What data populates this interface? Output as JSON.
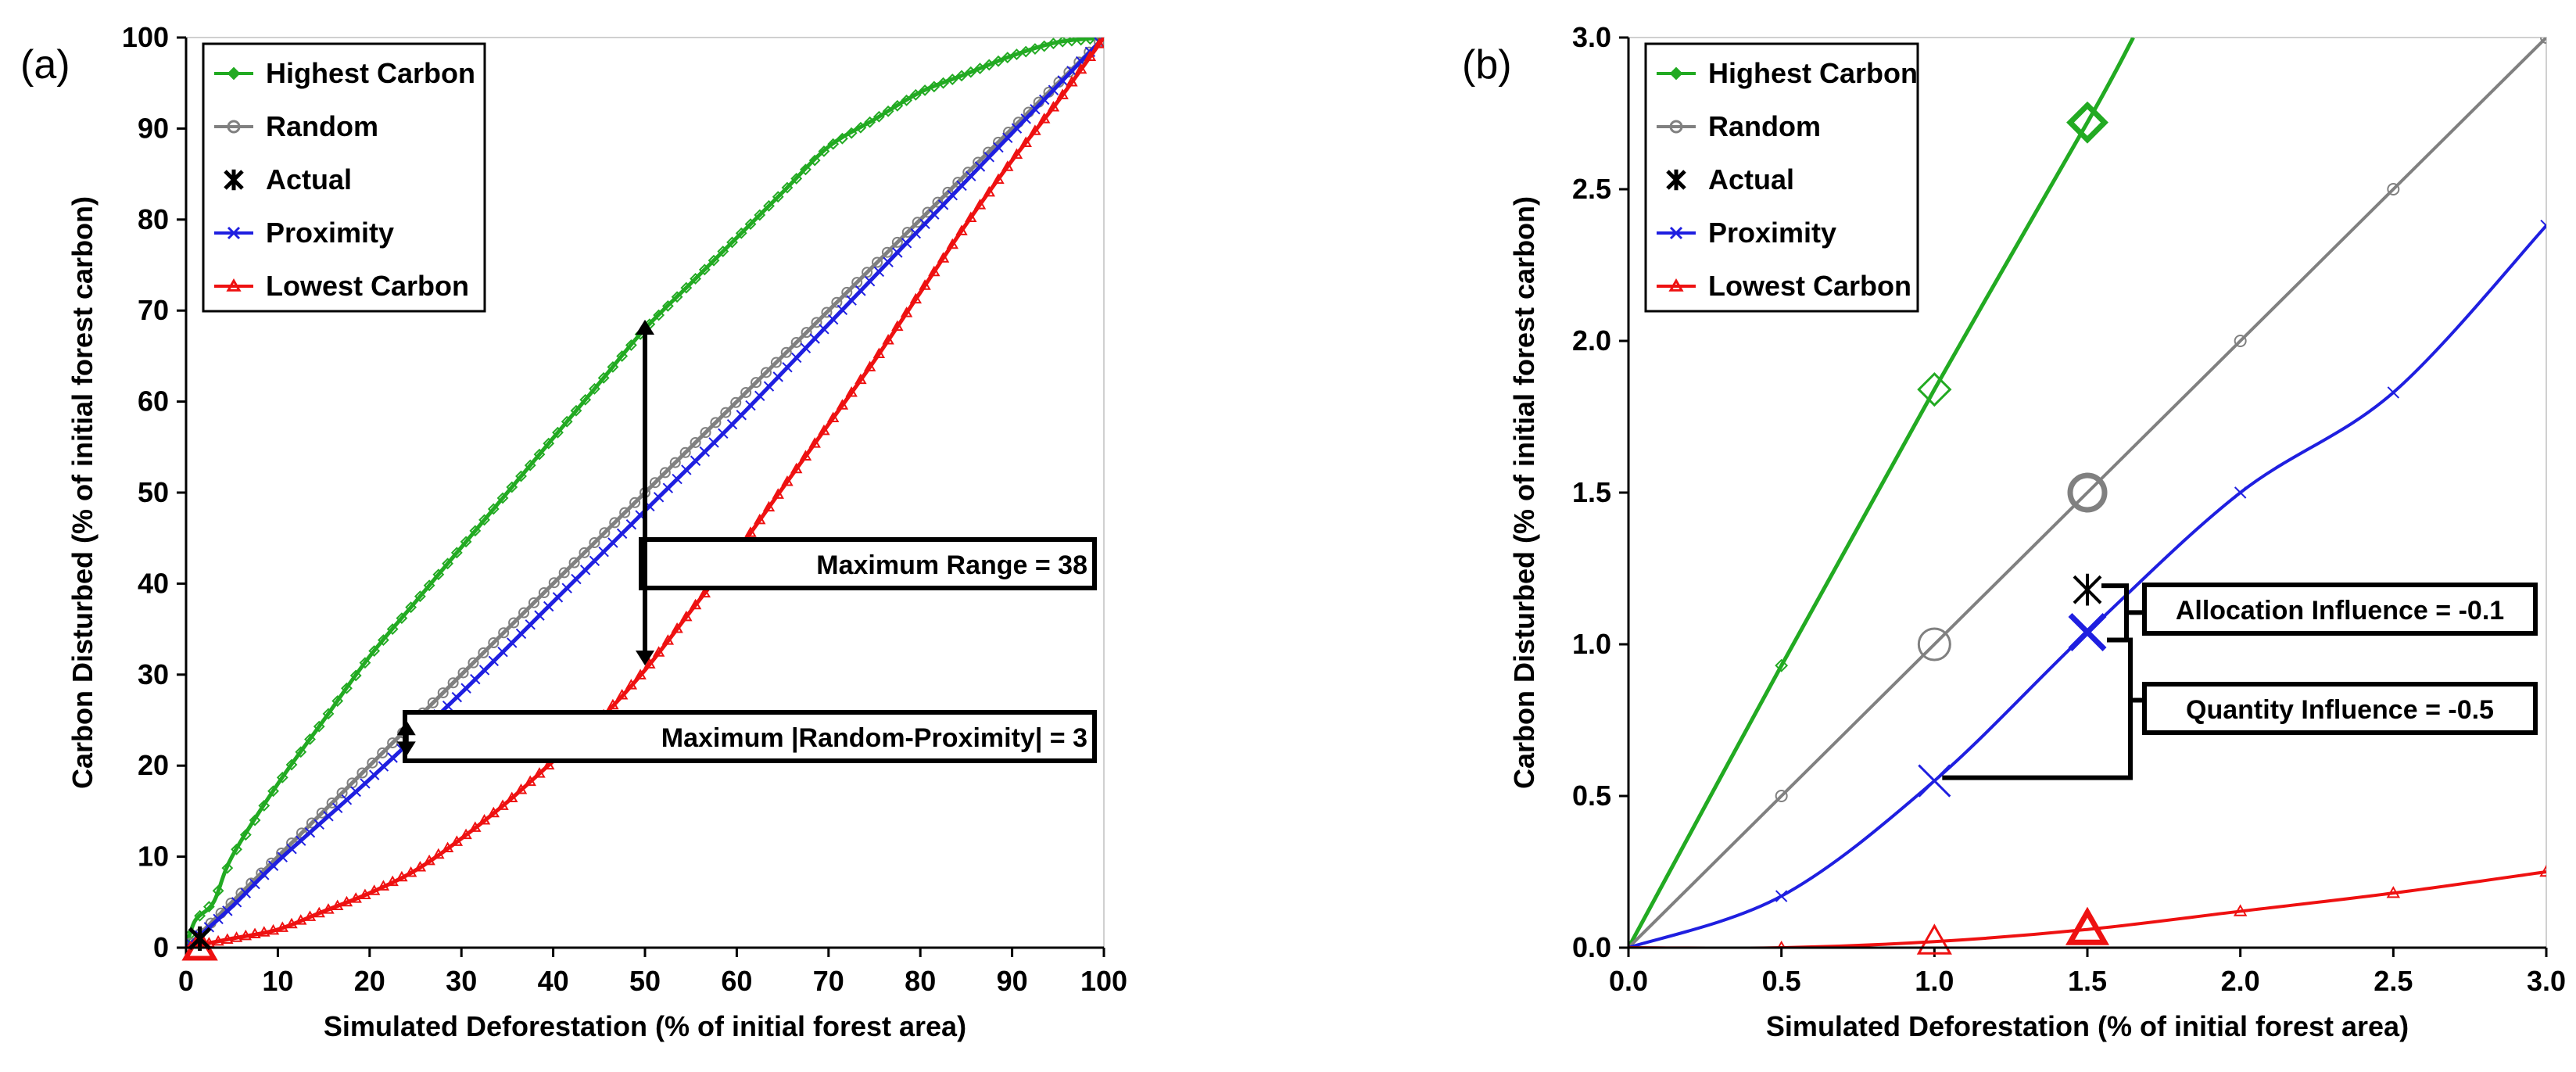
{
  "colors": {
    "highest": "#22aa22",
    "random": "#808080",
    "actual": "#000000",
    "proximity": "#1f1fe0",
    "lowest": "#ee1111"
  },
  "chart_data": [
    {
      "panel_label": "(a)",
      "type": "line",
      "xlabel": "Simulated Deforestation (% of initial forest area)",
      "ylabel": "Carbon Disturbed (% of initial forest carbon)",
      "xlim": [
        0,
        100
      ],
      "ylim": [
        0,
        100
      ],
      "xticks": [
        "0",
        "10",
        "20",
        "30",
        "40",
        "50",
        "60",
        "70",
        "80",
        "90",
        "100"
      ],
      "yticks": [
        "0",
        "10",
        "20",
        "30",
        "40",
        "50",
        "60",
        "70",
        "80",
        "90",
        "100"
      ],
      "legend": [
        "Highest Carbon",
        "Random",
        "Actual",
        "Proximity",
        "Lowest Carbon"
      ],
      "series": [
        {
          "name": "Highest Carbon",
          "key": "highest",
          "x": [
            0,
            1,
            3,
            5,
            10,
            15,
            20,
            25,
            30,
            35,
            40,
            45,
            50,
            55,
            60,
            65,
            70,
            75,
            80,
            85,
            90,
            95,
            100
          ],
          "values": [
            0,
            3,
            5,
            10,
            18,
            25,
            32,
            38,
            44,
            50,
            56,
            62,
            68,
            73,
            78,
            83,
            88,
            91,
            94,
            96,
            98,
            99.5,
            100
          ]
        },
        {
          "name": "Random",
          "key": "random",
          "x": [
            0,
            10,
            20,
            30,
            40,
            50,
            60,
            70,
            80,
            90,
            100
          ],
          "values": [
            0,
            10,
            20,
            30,
            40,
            50,
            60,
            70,
            80,
            90,
            100
          ]
        },
        {
          "name": "Proximity",
          "key": "proximity",
          "x": [
            0,
            5,
            10,
            20,
            30,
            40,
            50,
            60,
            70,
            80,
            90,
            100
          ],
          "values": [
            0,
            4.5,
            9.5,
            18.5,
            28,
            38,
            48,
            58,
            68.5,
            79,
            89.5,
            100
          ]
        },
        {
          "name": "Lowest Carbon",
          "key": "lowest",
          "x": [
            0,
            5,
            10,
            15,
            20,
            25,
            30,
            35,
            40,
            45,
            50,
            55,
            60,
            65,
            70,
            75,
            80,
            85,
            90,
            95,
            100
          ],
          "values": [
            0,
            1,
            2,
            4,
            6,
            8.5,
            12,
            16,
            20.5,
            25,
            30.5,
            37,
            43.5,
            50.5,
            57.5,
            64.5,
            72,
            79.5,
            86.5,
            93,
            100
          ]
        }
      ],
      "actual": {
        "name": "Actual",
        "x": 1.5,
        "y": 1
      },
      "big_markers": [
        {
          "series": "lowest",
          "x": 1.5,
          "y": 0
        }
      ],
      "annotations": {
        "range": {
          "label": "Maximum  Range = 38",
          "x": 50,
          "y_low": 31,
          "y_high": 69
        },
        "rp": {
          "label": "Maximum  |Random-Proximity|  = 3",
          "x": 24,
          "y_low": 21,
          "y_high": 25
        }
      }
    },
    {
      "panel_label": "(b)",
      "type": "line",
      "xlabel": "Simulated Deforestation (% of initial forest area)",
      "ylabel": "Carbon Disturbed (% of initial forest carbon)",
      "xlim": [
        0,
        3
      ],
      "ylim": [
        0,
        3
      ],
      "xticks": [
        "0.0",
        "0.5",
        "1.0",
        "1.5",
        "2.0",
        "2.5",
        "3.0"
      ],
      "yticks": [
        "0.0",
        "0.5",
        "1.0",
        "1.5",
        "2.0",
        "2.5",
        "3.0"
      ],
      "legend": [
        "Highest Carbon",
        "Random",
        "Actual",
        "Proximity",
        "Lowest Carbon"
      ],
      "series": [
        {
          "name": "Highest Carbon",
          "key": "highest",
          "x": [
            0,
            0.5,
            1.0,
            1.5,
            1.65
          ],
          "values": [
            0,
            0.93,
            1.84,
            2.72,
            3.0
          ]
        },
        {
          "name": "Random",
          "key": "random",
          "x": [
            0,
            0.5,
            1.0,
            1.5,
            2.0,
            2.5,
            3.0
          ],
          "values": [
            0,
            0.5,
            1.0,
            1.5,
            2.0,
            2.5,
            3.0
          ]
        },
        {
          "name": "Proximity",
          "key": "proximity",
          "x": [
            0,
            0.5,
            1.0,
            1.5,
            2.0,
            2.5,
            3.0
          ],
          "values": [
            0,
            0.17,
            0.55,
            1.04,
            1.5,
            1.83,
            2.38
          ]
        },
        {
          "name": "Lowest Carbon",
          "key": "lowest",
          "x": [
            0,
            0.5,
            1.0,
            1.5,
            2.0,
            2.5,
            3.0
          ],
          "values": [
            0,
            0.0,
            0.02,
            0.06,
            0.12,
            0.18,
            0.25
          ]
        }
      ],
      "small_marker_x": [
        0.5,
        2.0,
        2.5,
        3.0
      ],
      "actual": {
        "name": "Actual",
        "x": 1.5,
        "y": 1.18
      },
      "big_markers": [
        {
          "series": "highest",
          "x": 1.5,
          "y": 2.72
        },
        {
          "series": "random",
          "x": 1.5,
          "y": 1.5
        },
        {
          "series": "proximity",
          "x": 1.5,
          "y": 1.04
        },
        {
          "series": "lowest",
          "x": 1.5,
          "y": 0.06
        },
        {
          "series": "highest",
          "x": 1.0,
          "y": 1.84
        },
        {
          "series": "random",
          "x": 1.0,
          "y": 1.0
        },
        {
          "series": "proximity",
          "x": 1.0,
          "y": 0.55
        },
        {
          "series": "lowest",
          "x": 1.0,
          "y": 0.02
        }
      ],
      "annotations": {
        "allocation": {
          "label": "Allocation  Influence = -0.1",
          "x": 1.5,
          "y_low": 1.04,
          "y_high": 1.18
        },
        "quantity": {
          "label": "Quantity  Influence = -0.5",
          "x": 1.5,
          "y_low": 0.55,
          "y_high": 1.04
        }
      }
    }
  ]
}
